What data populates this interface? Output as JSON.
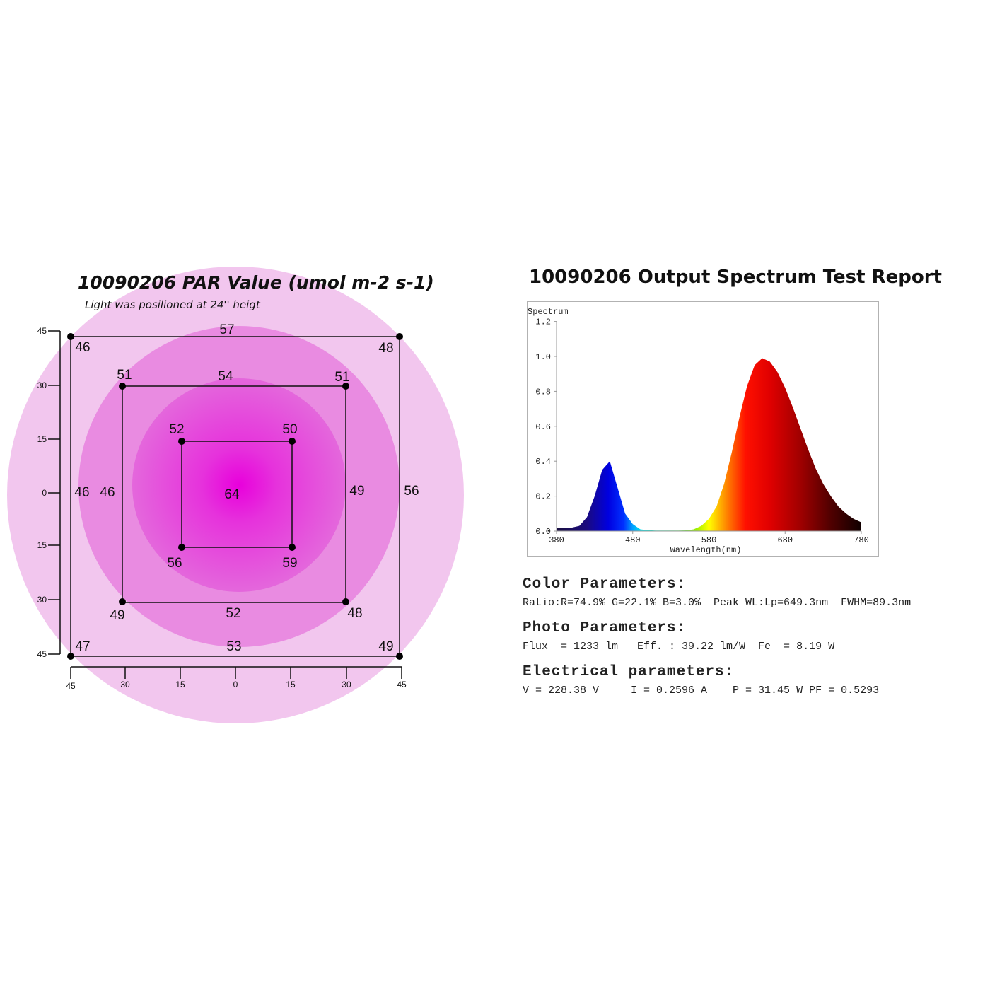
{
  "par": {
    "title": "10090206 PAR Value (umol m-2 s-1)",
    "subtitle": "Light was posilioned at 24'' heigt",
    "y_ticks": [
      "45",
      "30",
      "15",
      "0",
      "15",
      "30",
      "45"
    ],
    "x_ticks": [
      "45",
      "30",
      "15",
      "0",
      "15",
      "30",
      "45"
    ],
    "values": [
      "57",
      "46",
      "48",
      "51",
      "54",
      "51",
      "52",
      "50",
      "46",
      "46",
      "64",
      "49",
      "56",
      "56",
      "59",
      "49",
      "52",
      "48",
      "47",
      "53",
      "49"
    ],
    "colors": {
      "outer": "#f2c6ee",
      "middle": "#e98be1",
      "inner": "#e467dc",
      "center": "#e800dc"
    }
  },
  "spectrum": {
    "title": "10090206 Output Spectrum Test Report",
    "ylabel": "Spectrum",
    "xlabel": "Wavelength(nm)",
    "y_ticks": [
      "0.0",
      "0.2",
      "0.4",
      "0.6",
      "0.8",
      "1.0",
      "1.2"
    ],
    "x_ticks": [
      "380",
      "480",
      "580",
      "680",
      "780"
    ]
  },
  "chart_data": [
    {
      "type": "heatmap",
      "title": "10090206 PAR Value (umol m-2 s-1)",
      "subtitle": "Light was posilioned at 24'' heigt",
      "xlabel": "",
      "ylabel": "",
      "x_ticks": [
        45,
        30,
        15,
        0,
        15,
        30,
        45
      ],
      "y_ticks": [
        45,
        30,
        15,
        0,
        15,
        30,
        45
      ],
      "points": [
        {
          "x": -45,
          "y": 45,
          "v": 46
        },
        {
          "x": 0,
          "y": 45,
          "v": 57
        },
        {
          "x": 45,
          "y": 45,
          "v": 48
        },
        {
          "x": -30,
          "y": 30,
          "v": 51
        },
        {
          "x": 0,
          "y": 30,
          "v": 54
        },
        {
          "x": 30,
          "y": 30,
          "v": 51
        },
        {
          "x": -15,
          "y": 15,
          "v": 52
        },
        {
          "x": 15,
          "y": 15,
          "v": 50
        },
        {
          "x": -45,
          "y": 0,
          "v": 46
        },
        {
          "x": -30,
          "y": 0,
          "v": 46
        },
        {
          "x": 0,
          "y": 0,
          "v": 64
        },
        {
          "x": 30,
          "y": 0,
          "v": 49
        },
        {
          "x": 45,
          "y": 0,
          "v": 56
        },
        {
          "x": -15,
          "y": -15,
          "v": 56
        },
        {
          "x": 15,
          "y": -15,
          "v": 59
        },
        {
          "x": -30,
          "y": -30,
          "v": 49
        },
        {
          "x": 0,
          "y": -30,
          "v": 52
        },
        {
          "x": 30,
          "y": -30,
          "v": 48
        },
        {
          "x": -45,
          "y": -45,
          "v": 47
        },
        {
          "x": 0,
          "y": -45,
          "v": 53
        },
        {
          "x": 45,
          "y": -45,
          "v": 49
        }
      ]
    },
    {
      "type": "area",
      "title": "10090206 Output Spectrum Test Report",
      "xlabel": "Wavelength(nm)",
      "ylabel": "Spectrum",
      "xlim": [
        380,
        780
      ],
      "ylim": [
        0,
        1.2
      ],
      "grid": false,
      "x": [
        380,
        390,
        400,
        410,
        420,
        430,
        440,
        450,
        460,
        470,
        480,
        490,
        500,
        510,
        520,
        530,
        540,
        550,
        560,
        570,
        580,
        590,
        600,
        610,
        620,
        630,
        640,
        650,
        660,
        670,
        680,
        690,
        700,
        710,
        720,
        730,
        740,
        750,
        760,
        770,
        780
      ],
      "y": [
        0.02,
        0.02,
        0.02,
        0.03,
        0.08,
        0.2,
        0.35,
        0.4,
        0.25,
        0.1,
        0.04,
        0.01,
        0.005,
        0.003,
        0.003,
        0.003,
        0.003,
        0.004,
        0.01,
        0.03,
        0.07,
        0.14,
        0.27,
        0.45,
        0.65,
        0.83,
        0.95,
        0.99,
        0.97,
        0.91,
        0.82,
        0.71,
        0.59,
        0.47,
        0.36,
        0.27,
        0.2,
        0.14,
        0.1,
        0.07,
        0.05
      ]
    }
  ],
  "parameters": {
    "color_heading": "Color Parameters:",
    "color_line": "Ratio:R=74.9% G=22.1% B=3.0%  Peak WL:Lp=649.3nm  FWHM=89.3nm",
    "photo_heading": "Photo Parameters:",
    "photo_line": "Flux  = 1233 lm   Eff. : 39.22 lm/W  Fe  = 8.19 W",
    "elec_heading": "Electrical parameters:",
    "elec_line": "V = 228.38 V     I = 0.2596 A    P = 31.45 W PF = 0.5293"
  }
}
